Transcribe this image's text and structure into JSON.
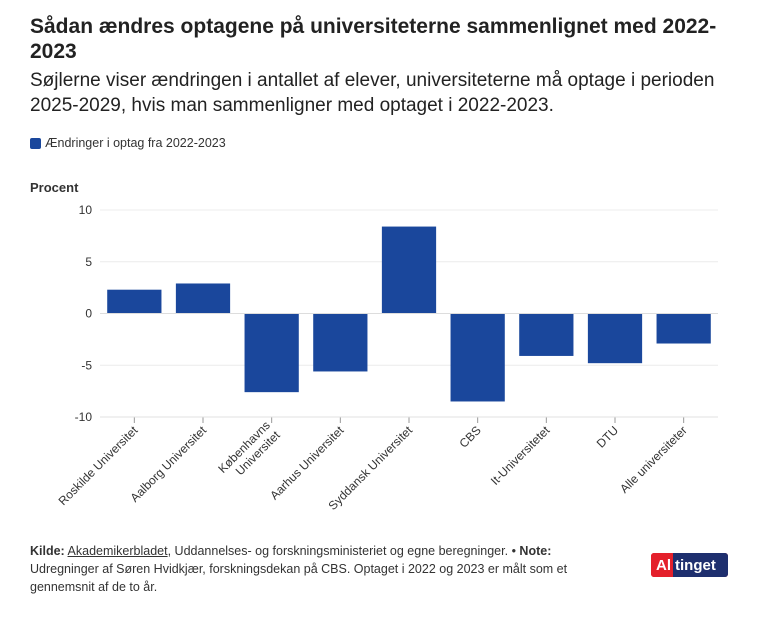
{
  "title": "Sådan ændres optagene på universiteterne sammenlignet med 2022-2023",
  "subtitle": "Søjlerne viser ændringen i antallet af elever, universiteterne må optage i perioden 2025-2029, hvis man sammenligner med optaget i 2022-2023.",
  "legend_label": "Ændringer i optag fra 2022-2023",
  "colors": {
    "bar": "#1a479c",
    "grid": "#ececec",
    "text": "#333333"
  },
  "chart_data": {
    "type": "bar",
    "ylabel": "Procent",
    "ylim": [
      -10,
      10
    ],
    "yticks": [
      10,
      5,
      0,
      -5,
      -10
    ],
    "ytick_labels": [
      "10",
      "5",
      "0",
      "-5",
      "-10"
    ],
    "categories": [
      "Roskilde Universitet",
      "Aalborg Universitet",
      "Københavns Universitet",
      "Aarhus Universitet",
      "Syddansk Universitet",
      "CBS",
      "It-Universitetet",
      "DTU",
      "Alle universiteter"
    ],
    "series": [
      {
        "name": "Ændringer i optag fra 2022-2023",
        "values": [
          2.3,
          2.9,
          -7.6,
          -5.6,
          8.4,
          -8.5,
          -4.1,
          -4.8,
          -2.9
        ]
      }
    ],
    "grid": true
  },
  "footer": {
    "source_label": "Kilde:",
    "source_link": "Akademikerbladet",
    "source_rest": ", Uddannelses- og forskningsministeriet og egne beregninger.",
    "separator": " • ",
    "note_label": "Note:",
    "note_text": " Udregninger af Søren Hvidkjær, forskningsdekan på CBS. Optaget i 2022 og 2023 er målt som et gennemsnit af de to år."
  },
  "logo": {
    "part_a": "Al",
    "part_b": "tinget"
  }
}
